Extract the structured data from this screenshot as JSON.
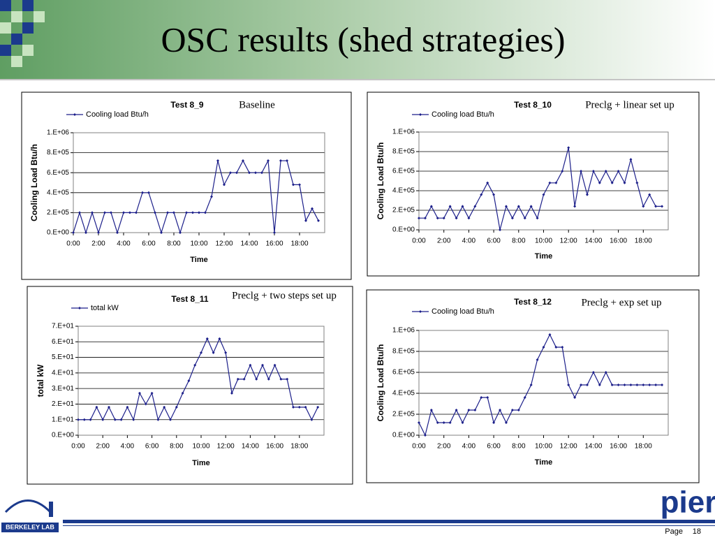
{
  "slide": {
    "title": "OSC results (shed strategies)",
    "page_label": "Page",
    "page_number": 18,
    "logo_left": "BERKELEY LAB",
    "logo_right": "pier"
  },
  "chart_data": [
    {
      "type": "line",
      "title": "Test 8_9",
      "annotation": "Baseline",
      "xlabel": "Time",
      "ylabel": "Cooling Load Btu/h",
      "grid": true,
      "xlim": [
        0,
        20
      ],
      "ylim": [
        0,
        1000000
      ],
      "xticks": [
        {
          "value": 0,
          "label": "0:00"
        },
        {
          "value": 2,
          "label": "2:00"
        },
        {
          "value": 4,
          "label": "4:00"
        },
        {
          "value": 6,
          "label": "6:00"
        },
        {
          "value": 8,
          "label": "8:00"
        },
        {
          "value": 10,
          "label": "10:00"
        },
        {
          "value": 12,
          "label": "12:00"
        },
        {
          "value": 14,
          "label": "14:00"
        },
        {
          "value": 16,
          "label": "16:00"
        },
        {
          "value": 18,
          "label": "18:00"
        }
      ],
      "yticks": [
        {
          "value": 0,
          "label": "0.E+00"
        },
        {
          "value": 200000,
          "label": "2.E+05"
        },
        {
          "value": 400000,
          "label": "4.E+05"
        },
        {
          "value": 600000,
          "label": "6.E+05"
        },
        {
          "value": 800000,
          "label": "8.E+05"
        },
        {
          "value": 1000000,
          "label": "1.E+06"
        }
      ],
      "x": [
        0,
        0.5,
        1,
        1.5,
        2,
        2.5,
        3,
        3.5,
        4,
        4.5,
        5,
        5.5,
        6,
        6.5,
        7,
        7.5,
        8,
        8.5,
        9,
        9.5,
        10,
        10.5,
        11,
        11.5,
        12,
        12.5,
        13,
        13.5,
        14,
        14.5,
        15,
        15.5,
        16,
        16.5,
        17,
        17.5,
        18,
        18.5,
        19,
        19.5
      ],
      "series": [
        {
          "name": "Cooling load Btu/h",
          "color": "#1c1f8a",
          "values": [
            0,
            200000,
            0,
            200000,
            0,
            200000,
            200000,
            0,
            200000,
            200000,
            200000,
            400000,
            400000,
            200000,
            0,
            200000,
            200000,
            0,
            200000,
            200000,
            200000,
            200000,
            360000,
            720000,
            480000,
            600000,
            600000,
            720000,
            600000,
            600000,
            600000,
            720000,
            0,
            720000,
            720000,
            480000,
            480000,
            120000,
            240000,
            120000
          ]
        }
      ]
    },
    {
      "type": "line",
      "title": "Test 8_10",
      "annotation": "Preclg + linear set up",
      "xlabel": "Time",
      "ylabel": "Cooling Load Btu/h",
      "grid": true,
      "xlim": [
        0,
        20
      ],
      "ylim": [
        0,
        1000000
      ],
      "xticks": [
        {
          "value": 0,
          "label": "0:00"
        },
        {
          "value": 2,
          "label": "2:00"
        },
        {
          "value": 4,
          "label": "4:00"
        },
        {
          "value": 6,
          "label": "6:00"
        },
        {
          "value": 8,
          "label": "8:00"
        },
        {
          "value": 10,
          "label": "10:00"
        },
        {
          "value": 12,
          "label": "12:00"
        },
        {
          "value": 14,
          "label": "14:00"
        },
        {
          "value": 16,
          "label": "16:00"
        },
        {
          "value": 18,
          "label": "18:00"
        }
      ],
      "yticks": [
        {
          "value": 0,
          "label": "0.E+00"
        },
        {
          "value": 200000,
          "label": "2.E+05"
        },
        {
          "value": 400000,
          "label": "4.E+05"
        },
        {
          "value": 600000,
          "label": "6.E+05"
        },
        {
          "value": 800000,
          "label": "8.E+05"
        },
        {
          "value": 1000000,
          "label": "1.E+06"
        }
      ],
      "x": [
        0,
        0.5,
        1,
        1.5,
        2,
        2.5,
        3,
        3.5,
        4,
        4.5,
        5,
        5.5,
        6,
        6.5,
        7,
        7.5,
        8,
        8.5,
        9,
        9.5,
        10,
        10.5,
        11,
        11.5,
        12,
        12.5,
        13,
        13.5,
        14,
        14.5,
        15,
        15.5,
        16,
        16.5,
        17,
        17.5,
        18,
        18.5,
        19,
        19.5
      ],
      "series": [
        {
          "name": "Cooling load Btu/h",
          "color": "#1c1f8a",
          "values": [
            120000,
            120000,
            240000,
            120000,
            120000,
            240000,
            120000,
            240000,
            120000,
            240000,
            360000,
            480000,
            360000,
            0,
            240000,
            120000,
            240000,
            120000,
            240000,
            120000,
            360000,
            480000,
            480000,
            600000,
            840000,
            240000,
            600000,
            360000,
            600000,
            480000,
            600000,
            480000,
            600000,
            480000,
            720000,
            480000,
            240000,
            360000,
            240000,
            240000
          ]
        }
      ]
    },
    {
      "type": "line",
      "title": "Test 8_11",
      "annotation": "Preclg + two steps set up",
      "xlabel": "Time",
      "ylabel": "total kW",
      "grid": true,
      "xlim": [
        0,
        20
      ],
      "ylim": [
        0,
        70
      ],
      "xticks": [
        {
          "value": 0,
          "label": "0:00"
        },
        {
          "value": 2,
          "label": "2:00"
        },
        {
          "value": 4,
          "label": "4:00"
        },
        {
          "value": 6,
          "label": "6:00"
        },
        {
          "value": 8,
          "label": "8:00"
        },
        {
          "value": 10,
          "label": "10:00"
        },
        {
          "value": 12,
          "label": "12:00"
        },
        {
          "value": 14,
          "label": "14:00"
        },
        {
          "value": 16,
          "label": "16:00"
        },
        {
          "value": 18,
          "label": "18:00"
        }
      ],
      "yticks": [
        {
          "value": 0,
          "label": "0.E+00"
        },
        {
          "value": 10,
          "label": "1.E+01"
        },
        {
          "value": 20,
          "label": "2.E+01"
        },
        {
          "value": 30,
          "label": "3.E+01"
        },
        {
          "value": 40,
          "label": "4.E+01"
        },
        {
          "value": 50,
          "label": "5.E+01"
        },
        {
          "value": 60,
          "label": "6.E+01"
        },
        {
          "value": 70,
          "label": "7.E+01"
        }
      ],
      "x": [
        0,
        0.5,
        1,
        1.5,
        2,
        2.5,
        3,
        3.5,
        4,
        4.5,
        5,
        5.5,
        6,
        6.5,
        7,
        7.5,
        8,
        8.5,
        9,
        9.5,
        10,
        10.5,
        11,
        11.5,
        12,
        12.5,
        13,
        13.5,
        14,
        14.5,
        15,
        15.5,
        16,
        16.5,
        17,
        17.5,
        18,
        18.5,
        19,
        19.5
      ],
      "series": [
        {
          "name": "total kW",
          "color": "#1c1f8a",
          "values": [
            10,
            10,
            10,
            18,
            10,
            18,
            10,
            10,
            18,
            10,
            27,
            20,
            27,
            10,
            18,
            10,
            18,
            27,
            35,
            45,
            53,
            62,
            53,
            62,
            53,
            27,
            36,
            36,
            45,
            36,
            45,
            36,
            45,
            36,
            36,
            18,
            18,
            18,
            10,
            18
          ]
        }
      ]
    },
    {
      "type": "line",
      "title": "Test 8_12",
      "annotation": "Preclg + exp set up",
      "xlabel": "Time",
      "ylabel": "Cooling Load Btu/h",
      "grid": true,
      "xlim": [
        0,
        20
      ],
      "ylim": [
        0,
        1000000
      ],
      "xticks": [
        {
          "value": 0,
          "label": "0:00"
        },
        {
          "value": 2,
          "label": "2:00"
        },
        {
          "value": 4,
          "label": "4:00"
        },
        {
          "value": 6,
          "label": "6:00"
        },
        {
          "value": 8,
          "label": "8:00"
        },
        {
          "value": 10,
          "label": "10:00"
        },
        {
          "value": 12,
          "label": "12:00"
        },
        {
          "value": 14,
          "label": "14:00"
        },
        {
          "value": 16,
          "label": "16:00"
        },
        {
          "value": 18,
          "label": "18:00"
        }
      ],
      "yticks": [
        {
          "value": 0,
          "label": "0.E+00"
        },
        {
          "value": 200000,
          "label": "2.E+05"
        },
        {
          "value": 400000,
          "label": "4.E+05"
        },
        {
          "value": 600000,
          "label": "6.E+05"
        },
        {
          "value": 800000,
          "label": "8.E+05"
        },
        {
          "value": 1000000,
          "label": "1.E+06"
        }
      ],
      "x": [
        0,
        0.5,
        1,
        1.5,
        2,
        2.5,
        3,
        3.5,
        4,
        4.5,
        5,
        5.5,
        6,
        6.5,
        7,
        7.5,
        8,
        8.5,
        9,
        9.5,
        10,
        10.5,
        11,
        11.5,
        12,
        12.5,
        13,
        13.5,
        14,
        14.5,
        15,
        15.5,
        16,
        16.5,
        17,
        17.5,
        18,
        18.5,
        19,
        19.5
      ],
      "series": [
        {
          "name": "Cooling load Btu/h",
          "color": "#1c1f8a",
          "values": [
            120000,
            0,
            240000,
            120000,
            120000,
            120000,
            240000,
            120000,
            240000,
            240000,
            360000,
            360000,
            120000,
            240000,
            120000,
            240000,
            240000,
            360000,
            480000,
            720000,
            840000,
            960000,
            840000,
            840000,
            480000,
            360000,
            480000,
            480000,
            600000,
            480000,
            600000,
            480000,
            480000,
            480000,
            480000,
            480000,
            480000,
            480000,
            480000,
            480000
          ]
        }
      ]
    }
  ]
}
